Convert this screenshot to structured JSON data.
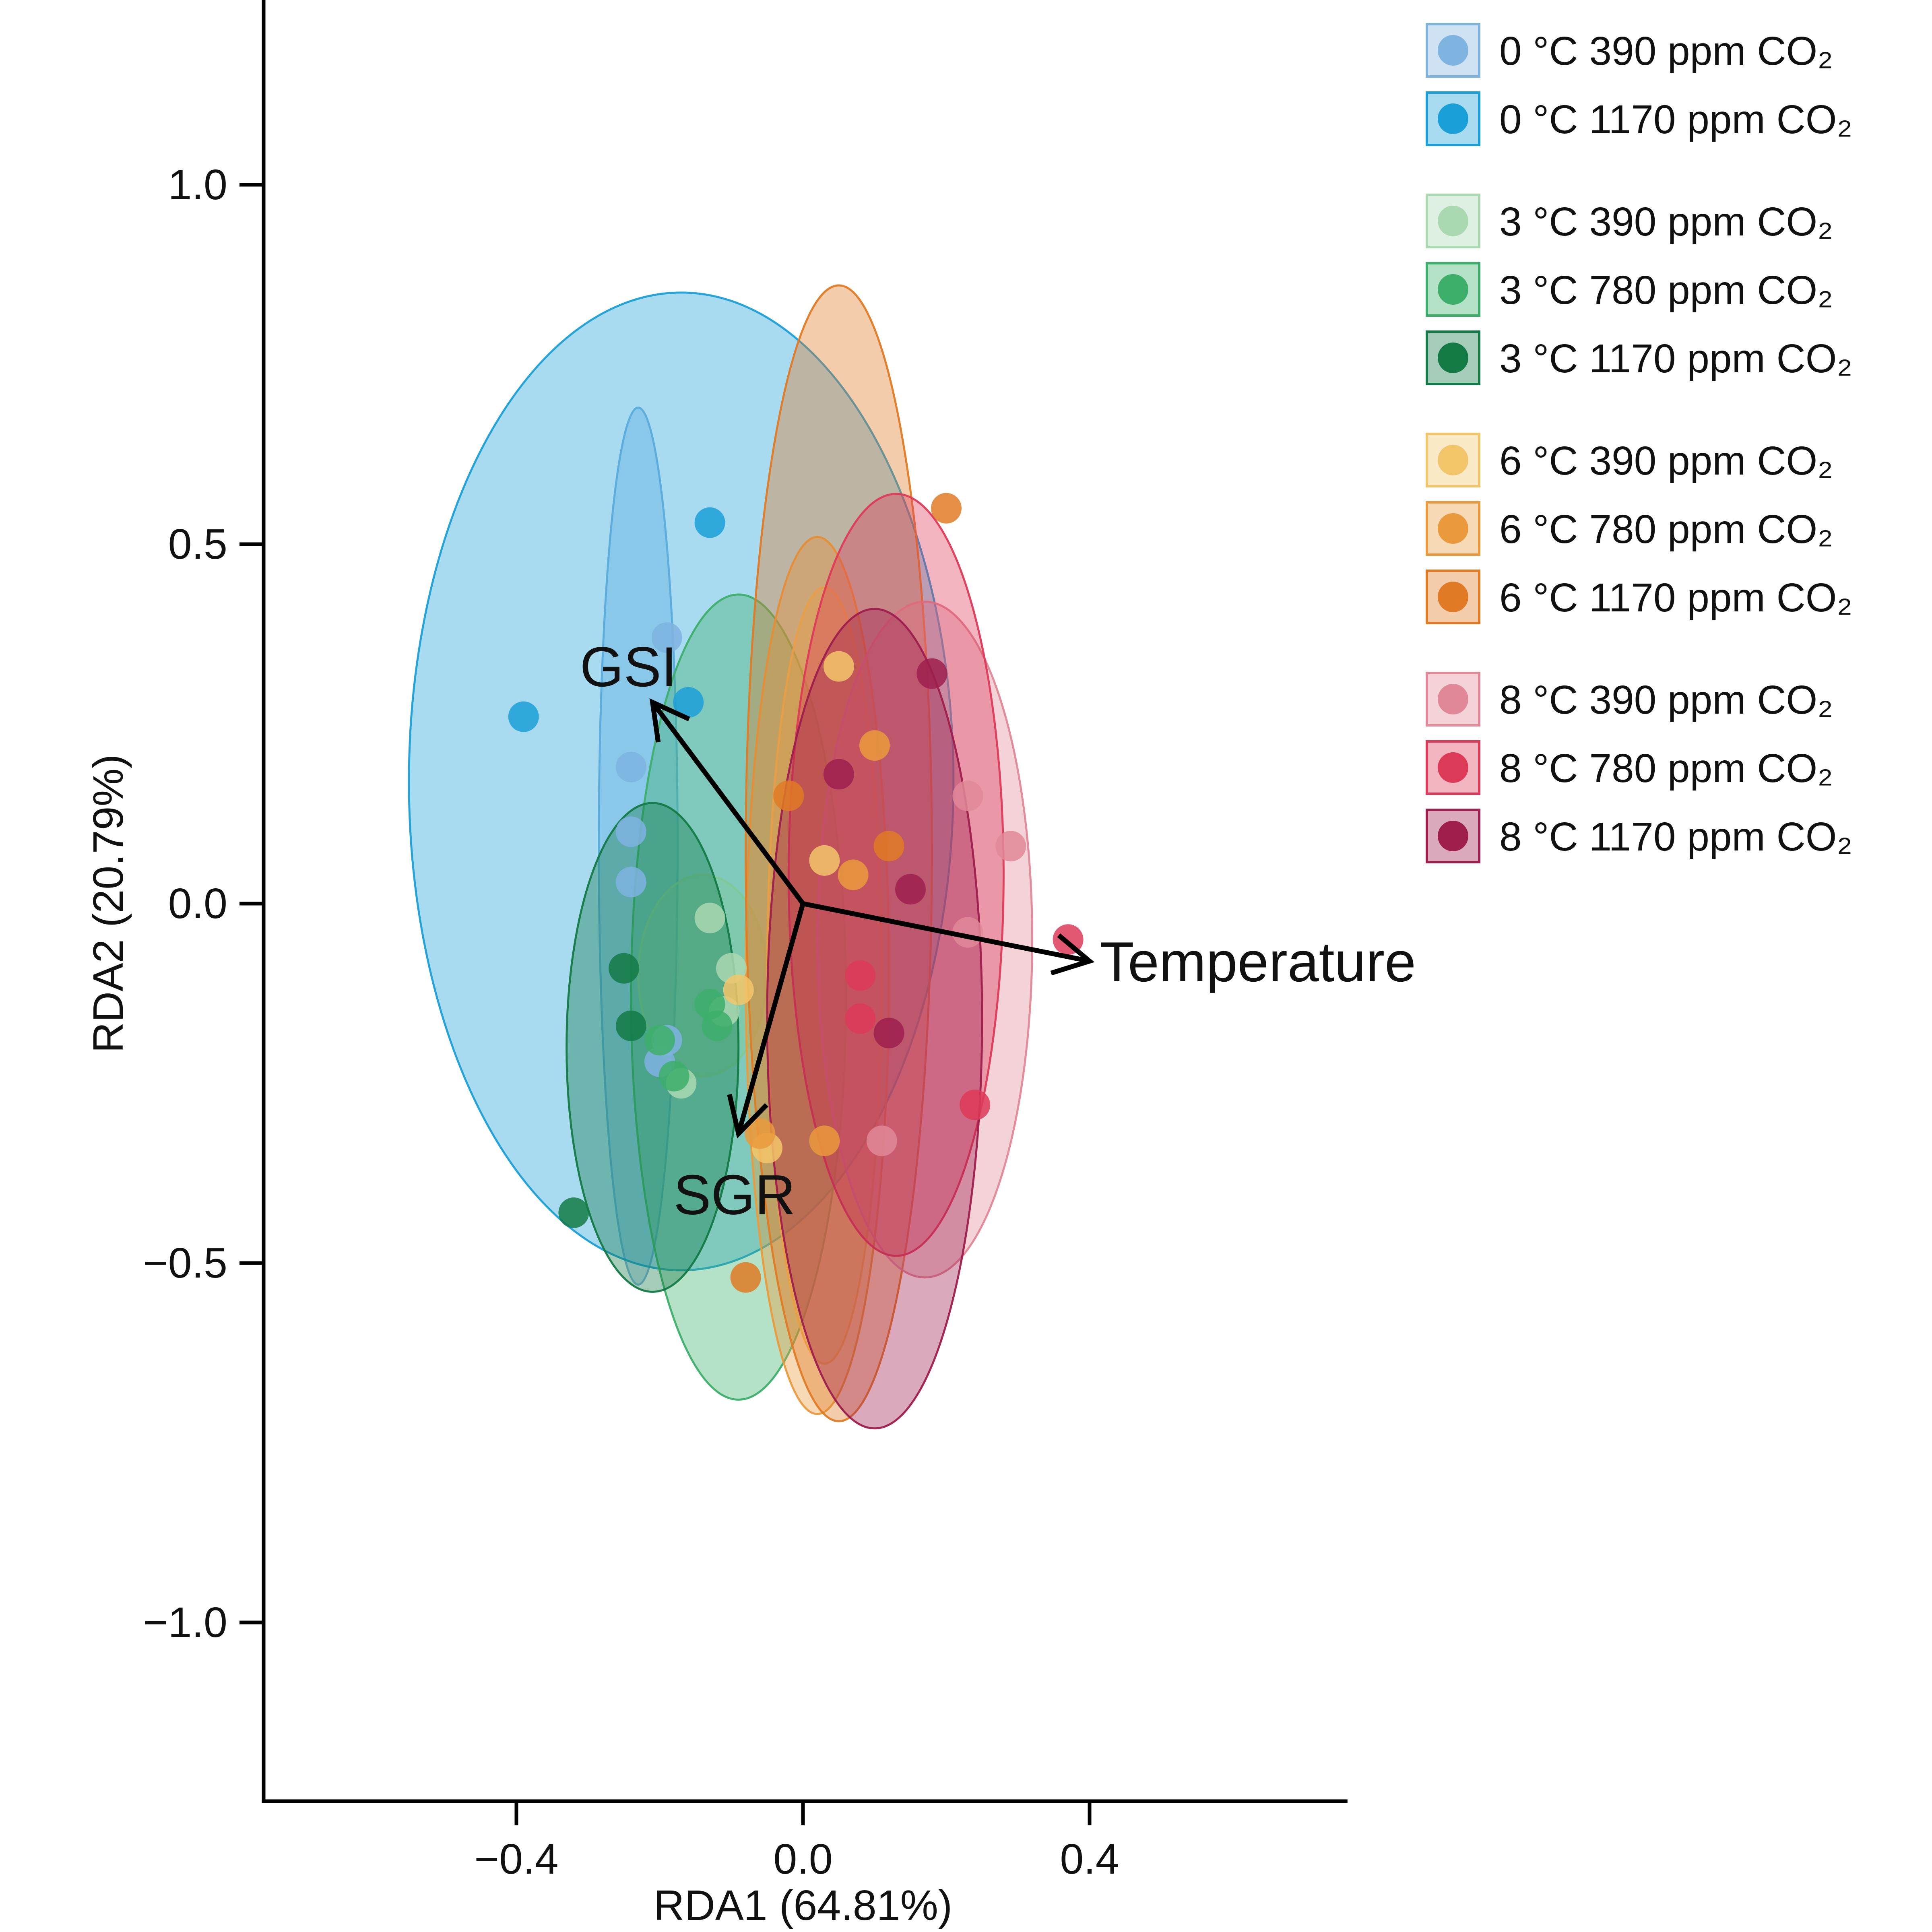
{
  "chart_data": {
    "type": "scatter",
    "subtype": "RDA biplot with 95% group ellipses",
    "xlabel": "RDA1 (64.81%)",
    "ylabel": "RDA2 (20.79%)",
    "xlim": [
      -0.76,
      0.76
    ],
    "ylim": [
      -1.24,
      1.26
    ],
    "xticks": [
      -0.4,
      0.0,
      0.4
    ],
    "xtick_labels": [
      "−0.4",
      "0.0",
      "0.4"
    ],
    "yticks": [
      -1.0,
      -0.5,
      0.0,
      0.5,
      1.0
    ],
    "ytick_labels": [
      "−1.0",
      "−0.5",
      "0.0",
      "0.5",
      "1.0"
    ],
    "grid": false,
    "legend_position": "top-right, outside plot",
    "vectors": [
      {
        "label": "GSI",
        "x": -0.21,
        "y": 0.28
      },
      {
        "label": "SGR",
        "x": -0.09,
        "y": -0.32
      },
      {
        "label": "Temperature",
        "x": 0.4,
        "y": -0.08
      }
    ],
    "groups": [
      {
        "name": "0 °C 390 ppm CO₂",
        "color": "#7fb3e0",
        "ellipse": {
          "cx": -0.23,
          "cy": 0.08,
          "rx": 0.055,
          "ry": 0.61,
          "angle": 0
        },
        "points": [
          [
            -0.19,
            0.37
          ],
          [
            -0.24,
            0.19
          ],
          [
            -0.24,
            0.1
          ],
          [
            -0.24,
            0.03
          ],
          [
            -0.19,
            -0.19
          ],
          [
            -0.2,
            -0.22
          ]
        ]
      },
      {
        "name": "0 °C 1170 ppm CO₂",
        "color": "#1b9fd8",
        "ellipse": {
          "cx": -0.17,
          "cy": 0.17,
          "rx": 0.38,
          "ry": 0.68,
          "angle": 0
        },
        "points": [
          [
            -0.13,
            0.53
          ],
          [
            -0.39,
            0.26
          ],
          [
            -0.16,
            0.28
          ]
        ]
      },
      {
        "name": "3 °C 390 ppm CO₂",
        "color": "#a9d8b1",
        "ellipse": {
          "cx": -0.14,
          "cy": -0.1,
          "rx": 0.09,
          "ry": 0.14,
          "angle": 0
        },
        "points": [
          [
            -0.13,
            -0.02
          ],
          [
            -0.1,
            -0.09
          ],
          [
            -0.11,
            -0.15
          ],
          [
            -0.17,
            -0.25
          ]
        ]
      },
      {
        "name": "3 °C 780 ppm CO₂",
        "color": "#3daf6a",
        "ellipse": {
          "cx": -0.09,
          "cy": -0.13,
          "rx": 0.15,
          "ry": 0.56,
          "angle": 0
        },
        "points": [
          [
            -0.13,
            -0.14
          ],
          [
            -0.2,
            -0.19
          ],
          [
            -0.18,
            -0.24
          ],
          [
            -0.12,
            -0.17
          ]
        ]
      },
      {
        "name": "3 °C 1170 ppm CO₂",
        "color": "#137a45",
        "ellipse": {
          "cx": -0.21,
          "cy": -0.2,
          "rx": 0.12,
          "ry": 0.34,
          "angle": 0
        },
        "points": [
          [
            -0.25,
            -0.09
          ],
          [
            -0.24,
            -0.17
          ],
          [
            -0.32,
            -0.43
          ]
        ]
      },
      {
        "name": "6 °C 390 ppm CO₂",
        "color": "#f3c56a",
        "ellipse": {
          "cx": 0.03,
          "cy": -0.1,
          "rx": 0.08,
          "ry": 0.54,
          "angle": 0
        },
        "points": [
          [
            0.05,
            0.33
          ],
          [
            0.03,
            0.06
          ],
          [
            -0.09,
            -0.12
          ],
          [
            -0.05,
            -0.34
          ]
        ]
      },
      {
        "name": "6 °C 780 ppm CO₂",
        "color": "#ea9a3c",
        "ellipse": {
          "cx": 0.02,
          "cy": -0.1,
          "rx": 0.1,
          "ry": 0.61,
          "angle": 0
        },
        "points": [
          [
            0.1,
            0.22
          ],
          [
            0.07,
            0.04
          ],
          [
            -0.06,
            -0.32
          ],
          [
            0.03,
            -0.33
          ]
        ]
      },
      {
        "name": "6 °C 1170 ppm CO₂",
        "color": "#e07a24",
        "ellipse": {
          "cx": 0.05,
          "cy": 0.07,
          "rx": 0.13,
          "ry": 0.79,
          "angle": 0
        },
        "points": [
          [
            0.2,
            0.55
          ],
          [
            -0.02,
            0.15
          ],
          [
            0.12,
            0.08
          ],
          [
            -0.08,
            -0.52
          ]
        ]
      },
      {
        "name": "8 °C 390 ppm CO₂",
        "color": "#e08898",
        "ellipse": {
          "cx": 0.17,
          "cy": -0.05,
          "rx": 0.15,
          "ry": 0.47,
          "angle": 0
        },
        "points": [
          [
            0.29,
            0.08
          ],
          [
            0.23,
            -0.04
          ],
          [
            0.11,
            -0.33
          ],
          [
            0.23,
            0.15
          ]
        ]
      },
      {
        "name": "8 °C 780 ppm CO₂",
        "color": "#dd3a58",
        "ellipse": {
          "cx": 0.13,
          "cy": 0.04,
          "rx": 0.15,
          "ry": 0.53,
          "angle": 0
        },
        "points": [
          [
            0.37,
            -0.05
          ],
          [
            0.24,
            -0.28
          ],
          [
            0.08,
            -0.1
          ],
          [
            0.08,
            -0.16
          ]
        ]
      },
      {
        "name": "8 °C 1170 ppm CO₂",
        "color": "#9e1e4d",
        "ellipse": {
          "cx": 0.1,
          "cy": -0.16,
          "rx": 0.15,
          "ry": 0.57,
          "angle": 0
        },
        "points": [
          [
            0.18,
            0.32
          ],
          [
            0.15,
            0.02
          ],
          [
            0.05,
            0.18
          ],
          [
            0.12,
            -0.18
          ]
        ]
      }
    ]
  }
}
